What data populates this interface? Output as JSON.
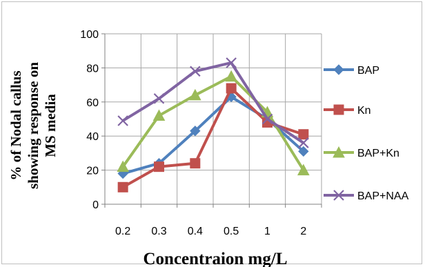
{
  "chart_data": {
    "type": "line",
    "categories": [
      "0.2",
      "0.3",
      "0.4",
      "0.5",
      "1",
      "2"
    ],
    "series": [
      {
        "name": "BAP",
        "values": [
          18,
          24,
          43,
          63,
          50,
          31
        ],
        "color": "#4F81BD",
        "marker": "diamond"
      },
      {
        "name": "Kn",
        "values": [
          10,
          22,
          24,
          68,
          48,
          41
        ],
        "color": "#C0504D",
        "marker": "square"
      },
      {
        "name": "BAP+Kn",
        "values": [
          22,
          52,
          64,
          75,
          54,
          20
        ],
        "color": "#9BBB59",
        "marker": "triangle"
      },
      {
        "name": "BAP+NAA",
        "values": [
          49,
          62,
          78,
          83,
          50,
          36
        ],
        "color": "#8064A2",
        "marker": "x"
      }
    ],
    "xlabel": "Concentraion mg/L",
    "ylabel_lines": [
      "% of Nodal callus",
      "showing response on",
      "MS media"
    ],
    "ylim": [
      0,
      100
    ],
    "yticks": [
      0,
      20,
      40,
      60,
      80,
      100
    ],
    "grid": true,
    "legend_position": "right"
  }
}
